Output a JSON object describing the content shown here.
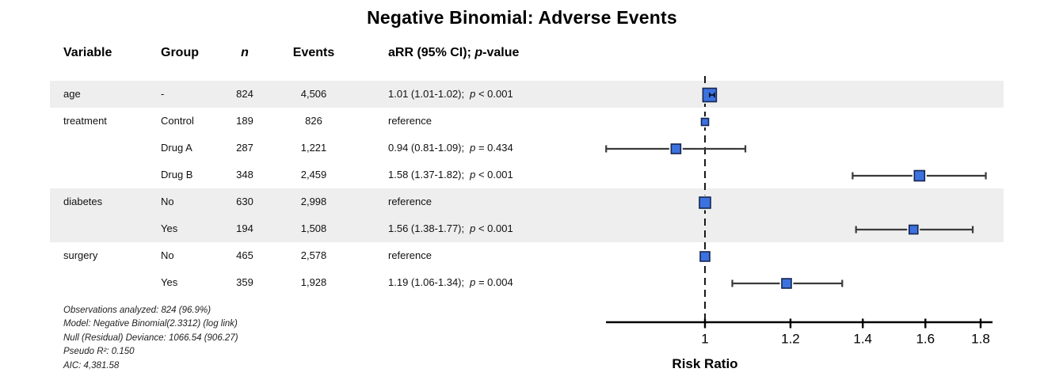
{
  "title": "Negative Binomial: Adverse Events",
  "columns": {
    "variable": "Variable",
    "group": "Group",
    "n": "n",
    "events": "Events",
    "estimate_prefix": "aRR (95% CI); ",
    "estimate_p": "p",
    "estimate_suffix": "-value"
  },
  "footnotes": [
    "Observations analyzed: 824 (96.9%)",
    "Model: Negative Binomial(2.3312) (log link)",
    "Null (Residual) Deviance: 1066.54 (906.27)",
    "Pseudo R²: 0.150",
    "AIC: 4,381.58"
  ],
  "chart_data": {
    "type": "scatter",
    "subtype": "forest-plot",
    "title": "Negative Binomial: Adverse Events",
    "xlabel": "Risk Ratio",
    "x_scale": "log",
    "x_ticks": [
      1,
      1.2,
      1.4,
      1.6,
      1.8
    ],
    "x_axis_range": [
      0.81,
      1.85
    ],
    "reference_line": 1.0,
    "grid": false,
    "rows": [
      {
        "variable": "age",
        "group": "-",
        "n": "824",
        "events": "4,506",
        "estimate": "1.01 (1.01-1.02);",
        "p_italic": "p",
        "p_rest": " < 0.001",
        "rr": 1.01,
        "ci_low": 1.01,
        "ci_high": 1.02,
        "box_size": 17,
        "striped": true,
        "reference": false,
        "tiny_ci": true
      },
      {
        "variable": "treatment",
        "group": "Control",
        "n": "189",
        "events": "826",
        "estimate": "reference",
        "p_italic": "",
        "p_rest": "",
        "rr": 1.0,
        "ci_low": null,
        "ci_high": null,
        "box_size": 9,
        "striped": false,
        "reference": true,
        "tiny_ci": false
      },
      {
        "variable": "",
        "group": "Drug A",
        "n": "287",
        "events": "1,221",
        "estimate": "0.94 (0.81-1.09);",
        "p_italic": "p",
        "p_rest": " = 0.434",
        "rr": 0.94,
        "ci_low": 0.81,
        "ci_high": 1.09,
        "box_size": 12,
        "striped": false,
        "reference": false,
        "tiny_ci": false
      },
      {
        "variable": "",
        "group": "Drug B",
        "n": "348",
        "events": "2,459",
        "estimate": "1.58 (1.37-1.82);",
        "p_italic": "p",
        "p_rest": " < 0.001",
        "rr": 1.58,
        "ci_low": 1.37,
        "ci_high": 1.82,
        "box_size": 13,
        "striped": false,
        "reference": false,
        "tiny_ci": false
      },
      {
        "variable": "diabetes",
        "group": "No",
        "n": "630",
        "events": "2,998",
        "estimate": "reference",
        "p_italic": "",
        "p_rest": "",
        "rr": 1.0,
        "ci_low": null,
        "ci_high": null,
        "box_size": 14,
        "striped": true,
        "reference": true,
        "tiny_ci": false
      },
      {
        "variable": "",
        "group": "Yes",
        "n": "194",
        "events": "1,508",
        "estimate": "1.56 (1.38-1.77);",
        "p_italic": "p",
        "p_rest": " < 0.001",
        "rr": 1.56,
        "ci_low": 1.38,
        "ci_high": 1.77,
        "box_size": 11,
        "striped": true,
        "reference": false,
        "tiny_ci": false
      },
      {
        "variable": "surgery",
        "group": "No",
        "n": "465",
        "events": "2,578",
        "estimate": "reference",
        "p_italic": "",
        "p_rest": "",
        "rr": 1.0,
        "ci_low": null,
        "ci_high": null,
        "box_size": 12,
        "striped": false,
        "reference": true,
        "tiny_ci": false
      },
      {
        "variable": "",
        "group": "Yes",
        "n": "359",
        "events": "1,928",
        "estimate": "1.19 (1.06-1.34);",
        "p_italic": "p",
        "p_rest": " = 0.004",
        "rr": 1.19,
        "ci_low": 1.06,
        "ci_high": 1.34,
        "box_size": 12,
        "striped": false,
        "reference": false,
        "tiny_ci": false
      }
    ],
    "colors": {
      "box_fill": "#3B72E0",
      "box_border": "#16254E",
      "whisker": "#3A3A3A",
      "stripe": "#EEEEEE",
      "axis": "#000000",
      "reference_dash": "#000000"
    }
  }
}
